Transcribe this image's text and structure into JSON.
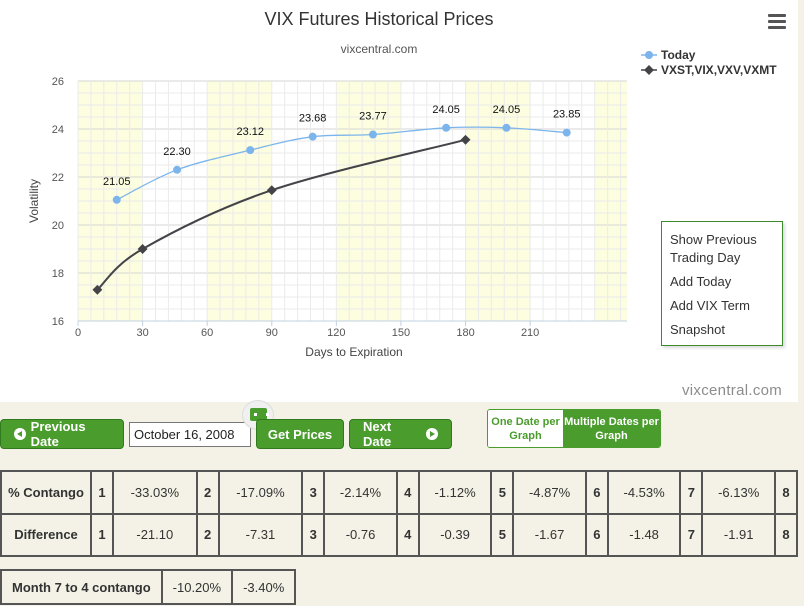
{
  "chart_data": {
    "type": "line",
    "title": "VIX Futures Historical Prices",
    "subtitle": "vixcentral.com",
    "xlabel": "Days to Expiration",
    "ylabel": "Volatility",
    "xlim": [
      0,
      255
    ],
    "ylim": [
      16,
      26
    ],
    "xticks": [
      0,
      30,
      60,
      90,
      120,
      150,
      180,
      210
    ],
    "yticks": [
      16,
      18,
      20,
      22,
      24,
      26
    ],
    "grid": true,
    "legend_position": "top-right",
    "series": [
      {
        "name": "Today",
        "color": "#7cb5ec",
        "x": [
          18,
          46,
          80,
          109,
          137,
          171,
          199,
          227
        ],
        "y": [
          21.05,
          22.3,
          23.12,
          23.68,
          23.77,
          24.05,
          24.05,
          23.85
        ],
        "labels": [
          "21.05",
          "22.30",
          "23.12",
          "23.68",
          "23.77",
          "24.05",
          "24.05",
          "23.85"
        ]
      },
      {
        "name": "VXST,VIX,VXV,VXMT",
        "color": "#434348",
        "x": [
          9,
          30,
          90,
          180
        ],
        "y": [
          17.3,
          19.0,
          21.45,
          23.55
        ]
      }
    ]
  },
  "chart_menu": {
    "icon": "hamburger-menu-icon",
    "items": [
      "Show Previous Trading Day",
      "Add Today",
      "Add VIX Term",
      "Snapshot"
    ]
  },
  "watermark": "vixcentral.com",
  "controls": {
    "prev_label": "Previous Date",
    "date_value": "October 16, 2008",
    "get_prices_label": "Get Prices",
    "next_label": "Next Date",
    "one_date_label": "One Date per Graph",
    "multi_dates_label": "Multiple Dates per Graph",
    "accent_color": "#4a9c2d"
  },
  "contango_table": {
    "rows": [
      {
        "header": "% Contango",
        "cells": [
          {
            "n": "1",
            "v": "-33.03%"
          },
          {
            "n": "2",
            "v": "-17.09%"
          },
          {
            "n": "3",
            "v": "-2.14%"
          },
          {
            "n": "4",
            "v": "-1.12%"
          },
          {
            "n": "5",
            "v": "-4.87%"
          },
          {
            "n": "6",
            "v": "-4.53%"
          },
          {
            "n": "7",
            "v": "-6.13%"
          },
          {
            "n": "8",
            "v": ""
          }
        ]
      },
      {
        "header": "Difference",
        "cells": [
          {
            "n": "1",
            "v": "-21.10"
          },
          {
            "n": "2",
            "v": "-7.31"
          },
          {
            "n": "3",
            "v": "-0.76"
          },
          {
            "n": "4",
            "v": "-0.39"
          },
          {
            "n": "5",
            "v": "-1.67"
          },
          {
            "n": "6",
            "v": "-1.48"
          },
          {
            "n": "7",
            "v": "-1.91"
          },
          {
            "n": "8",
            "v": ""
          }
        ]
      }
    ]
  },
  "month74": {
    "label": "Month 7 to 4 contango",
    "values": [
      "-10.20%",
      "-3.40%"
    ]
  }
}
